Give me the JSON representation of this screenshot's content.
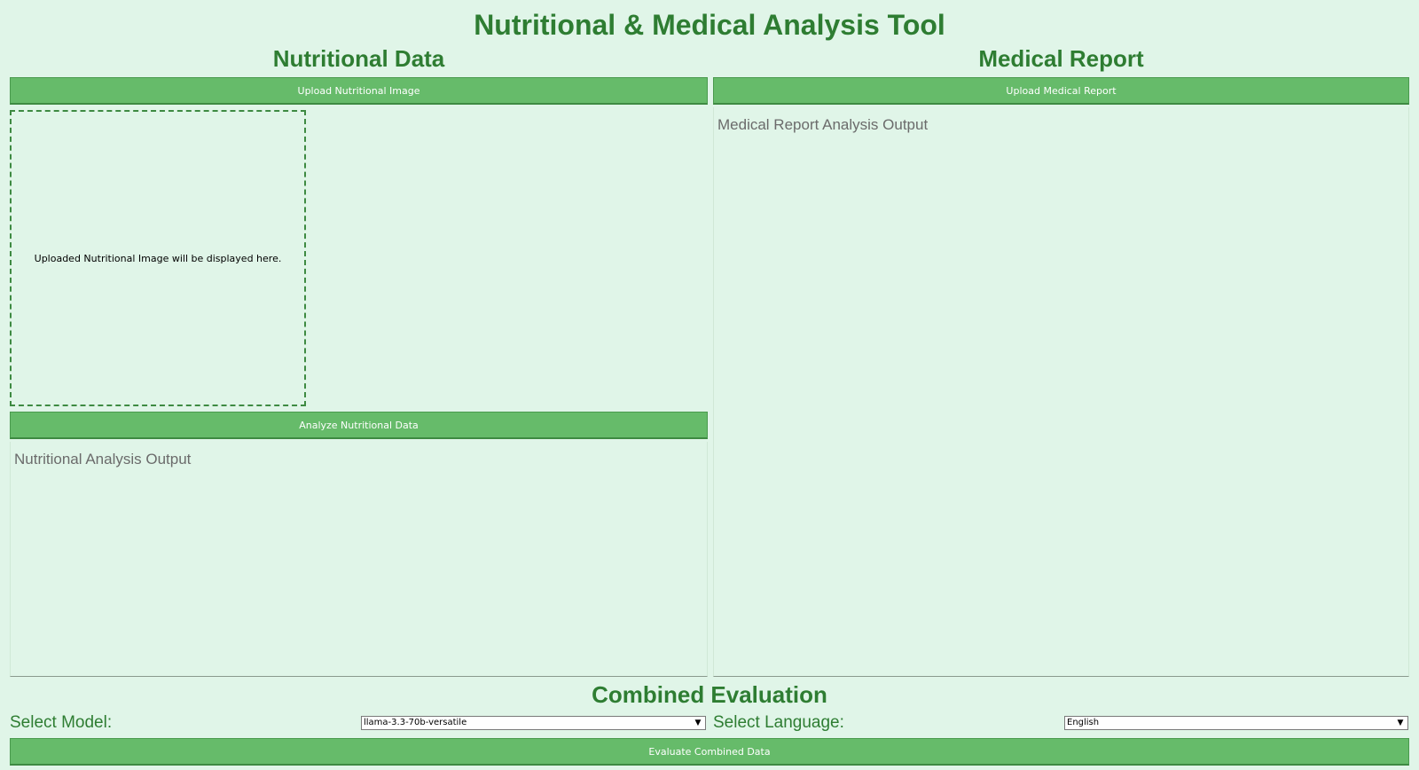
{
  "app": {
    "title": "Nutritional & Medical Analysis Tool"
  },
  "nutrition": {
    "title": "Nutritional Data",
    "upload_label": "Upload Nutritional Image",
    "image_placeholder": "Uploaded Nutritional Image will be displayed here.",
    "analyze_label": "Analyze Nutritional Data",
    "output_placeholder": "Nutritional Analysis Output"
  },
  "medical": {
    "title": "Medical Report",
    "upload_label": "Upload Medical Report",
    "output_placeholder": "Medical Report Analysis Output"
  },
  "combined": {
    "title": "Combined Evaluation",
    "model_label": "Select Model:",
    "model_value": "llama-3.3-70b-versatile",
    "language_label": "Select Language:",
    "language_value": "English",
    "evaluate_label": "Evaluate Combined Data"
  },
  "icons": {
    "dropdown": "chevron-down-icon"
  },
  "colors": {
    "background": "#e0f5e8",
    "accent": "#2e7d32",
    "button": "#66bb6a"
  }
}
